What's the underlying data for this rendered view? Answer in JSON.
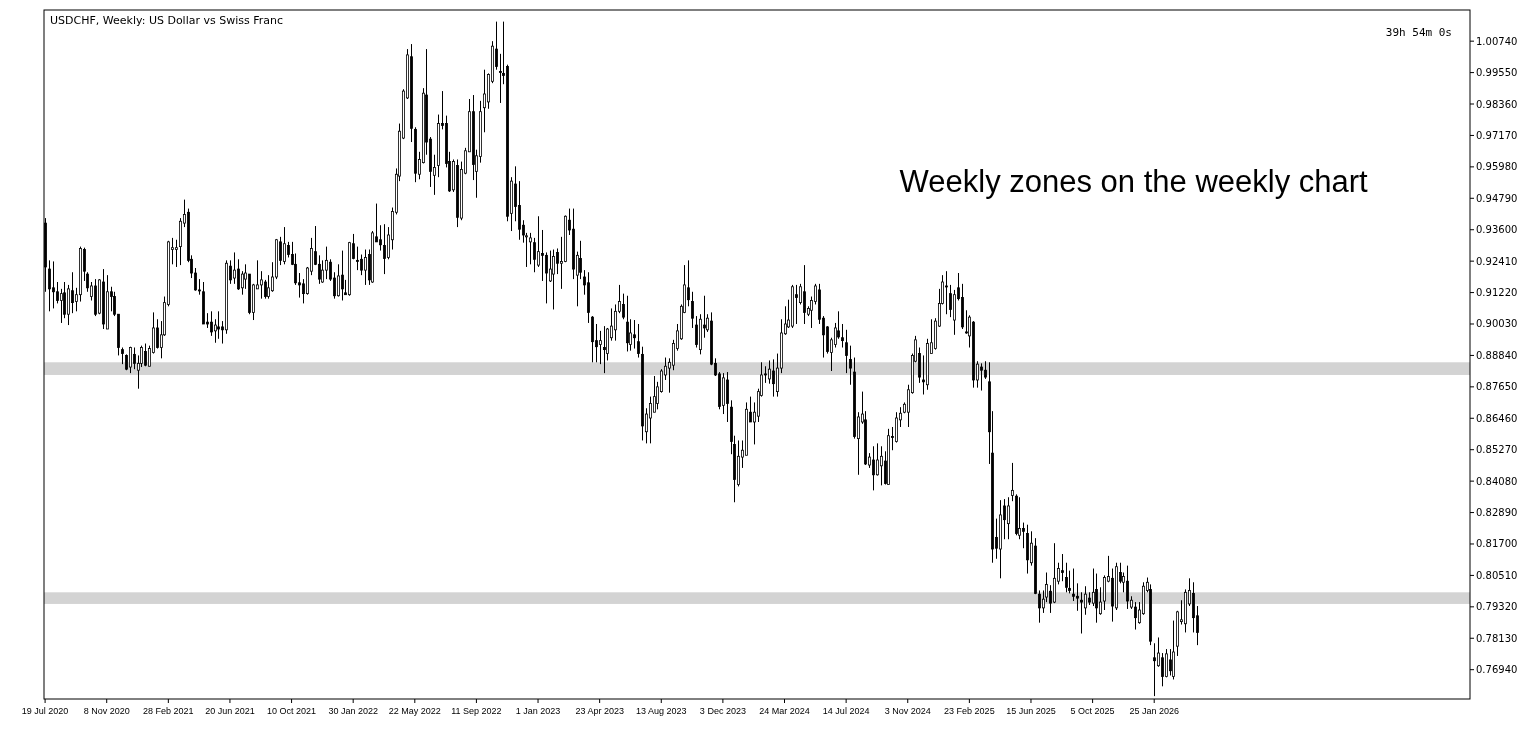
{
  "chart_data": {
    "type": "candlestick",
    "title": "USDCHF, Weekly:  US Dollar vs Swiss Franc",
    "annotations": [
      "Weekly zones on the weekly chart",
      "39h 54m 0s"
    ],
    "xlim": [
      "2020-07-17",
      "2027-08-22"
    ],
    "xticks": [
      {
        "value": "2020-07-19",
        "label": "19 Jul 2020"
      },
      {
        "value": "2020-11-08",
        "label": "8 Nov 2020"
      },
      {
        "value": "2021-02-28",
        "label": "28 Feb 2021"
      },
      {
        "value": "2021-06-20",
        "label": "20 Jun 2021"
      },
      {
        "value": "2021-10-10",
        "label": "10 Oct 2021"
      },
      {
        "value": "2022-01-30",
        "label": "30 Jan 2022"
      },
      {
        "value": "2022-05-22",
        "label": "22 May 2022"
      },
      {
        "value": "2022-09-11",
        "label": "11 Sep 2022"
      },
      {
        "value": "2023-01-01",
        "label": "1 Jan 2023"
      },
      {
        "value": "2023-04-23",
        "label": "23 Apr 2023"
      },
      {
        "value": "2023-08-13",
        "label": "13 Aug 2023"
      },
      {
        "value": "2023-12-03",
        "label": "3 Dec 2023"
      },
      {
        "value": "2024-03-24",
        "label": "24 Mar 2024"
      },
      {
        "value": "2024-07-14",
        "label": "14 Jul 2024"
      },
      {
        "value": "2024-11-03",
        "label": "3 Nov 2024"
      },
      {
        "value": "2025-02-23",
        "label": "23 Feb 2025"
      },
      {
        "value": "2025-06-15",
        "label": "15 Jun 2025"
      },
      {
        "value": "2025-10-05",
        "label": "5 Oct 2025"
      },
      {
        "value": "2026-01-25",
        "label": "25 Jan 2026"
      }
    ],
    "ylim": [
      0.7583,
      1.0192
    ],
    "yticks": [
      {
        "value": 1.0074,
        "label": "1.00740"
      },
      {
        "value": 0.9955,
        "label": "0.99550"
      },
      {
        "value": 0.9836,
        "label": "0.98360"
      },
      {
        "value": 0.9717,
        "label": "0.97170"
      },
      {
        "value": 0.9598,
        "label": "0.95980"
      },
      {
        "value": 0.9479,
        "label": "0.94790"
      },
      {
        "value": 0.936,
        "label": "0.93600"
      },
      {
        "value": 0.9241,
        "label": "0.92410"
      },
      {
        "value": 0.9122,
        "label": "0.91220"
      },
      {
        "value": 0.9003,
        "label": "0.90030"
      },
      {
        "value": 0.8884,
        "label": "0.88840"
      },
      {
        "value": 0.8765,
        "label": "0.87650"
      },
      {
        "value": 0.8646,
        "label": "0.86460"
      },
      {
        "value": 0.8527,
        "label": "0.85270"
      },
      {
        "value": 0.8408,
        "label": "0.84080"
      },
      {
        "value": 0.8289,
        "label": "0.82890"
      },
      {
        "value": 0.817,
        "label": "0.81700"
      },
      {
        "value": 0.8051,
        "label": "0.80510"
      },
      {
        "value": 0.7932,
        "label": "0.79320"
      },
      {
        "value": 0.7813,
        "label": "0.78130"
      },
      {
        "value": 0.7694,
        "label": "0.76940"
      }
    ],
    "bands": [
      {
        "axis": "y",
        "from": 0.881,
        "to": 0.8858,
        "color": "#d3d3d3"
      },
      {
        "axis": "y",
        "from": 0.7943,
        "to": 0.7987,
        "color": "#d3d3d3"
      }
    ],
    "x": [
      "2020-07-19",
      "2020-07-26",
      "2020-08-02",
      "2020-08-09",
      "2020-08-16",
      "2020-08-23",
      "2020-08-30",
      "2020-09-06",
      "2020-09-13",
      "2020-09-20",
      "2020-09-27",
      "2020-10-04",
      "2020-10-11",
      "2020-10-18",
      "2020-10-25",
      "2020-11-01",
      "2020-11-08",
      "2020-11-15",
      "2020-11-22",
      "2020-11-29",
      "2020-12-06",
      "2020-12-13",
      "2020-12-20",
      "2020-12-27",
      "2021-01-03",
      "2021-01-10",
      "2021-01-17",
      "2021-01-24",
      "2021-01-31",
      "2021-02-07",
      "2021-02-14",
      "2021-02-21",
      "2021-02-28",
      "2021-03-07",
      "2021-03-14",
      "2021-03-21",
      "2021-03-28",
      "2021-04-04",
      "2021-04-11",
      "2021-04-18",
      "2021-04-25",
      "2021-05-02",
      "2021-05-09",
      "2021-05-16",
      "2021-05-23",
      "2021-05-30",
      "2021-06-06",
      "2021-06-13",
      "2021-06-20",
      "2021-06-27",
      "2021-07-04",
      "2021-07-11",
      "2021-07-18",
      "2021-07-25",
      "2021-08-01",
      "2021-08-08",
      "2021-08-15",
      "2021-08-22",
      "2021-08-29",
      "2021-09-05",
      "2021-09-12",
      "2021-09-19",
      "2021-09-26",
      "2021-10-03",
      "2021-10-10",
      "2021-10-17",
      "2021-10-24",
      "2021-10-31",
      "2021-11-07",
      "2021-11-14",
      "2021-11-21",
      "2021-11-28",
      "2021-12-05",
      "2021-12-12",
      "2021-12-19",
      "2021-12-26",
      "2022-01-02",
      "2022-01-09",
      "2022-01-16",
      "2022-01-23",
      "2022-01-30",
      "2022-02-06",
      "2022-02-13",
      "2022-02-20",
      "2022-02-27",
      "2022-03-06",
      "2022-03-13",
      "2022-03-20",
      "2022-03-27",
      "2022-04-03",
      "2022-04-10",
      "2022-04-17",
      "2022-04-24",
      "2022-05-01",
      "2022-05-08",
      "2022-05-15",
      "2022-05-22",
      "2022-05-29",
      "2022-06-05",
      "2022-06-12",
      "2022-06-19",
      "2022-06-26",
      "2022-07-03",
      "2022-07-10",
      "2022-07-17",
      "2022-07-24",
      "2022-07-31",
      "2022-08-07",
      "2022-08-14",
      "2022-08-21",
      "2022-08-28",
      "2022-09-04",
      "2022-09-11",
      "2022-09-18",
      "2022-09-25",
      "2022-10-02",
      "2022-10-09",
      "2022-10-16",
      "2022-10-23",
      "2022-10-30",
      "2022-11-06",
      "2022-11-13",
      "2022-11-20",
      "2022-11-27",
      "2022-12-04",
      "2022-12-11",
      "2022-12-18",
      "2022-12-25",
      "2023-01-01",
      "2023-01-08",
      "2023-01-15",
      "2023-01-22",
      "2023-01-29",
      "2023-02-05",
      "2023-02-12",
      "2023-02-19",
      "2023-02-26",
      "2023-03-05",
      "2023-03-12",
      "2023-03-19",
      "2023-03-26",
      "2023-04-02",
      "2023-04-09",
      "2023-04-16",
      "2023-04-23",
      "2023-04-30",
      "2023-05-07",
      "2023-05-14",
      "2023-05-21",
      "2023-05-28",
      "2023-06-04",
      "2023-06-11",
      "2023-06-18",
      "2023-06-25",
      "2023-07-02",
      "2023-07-09",
      "2023-07-16",
      "2023-07-23",
      "2023-07-30",
      "2023-08-06",
      "2023-08-13",
      "2023-08-20",
      "2023-08-27",
      "2023-09-03",
      "2023-09-10",
      "2023-09-17",
      "2023-09-24",
      "2023-10-01",
      "2023-10-08",
      "2023-10-15",
      "2023-10-22",
      "2023-10-29",
      "2023-11-05",
      "2023-11-12",
      "2023-11-19",
      "2023-11-26",
      "2023-12-03",
      "2023-12-10",
      "2023-12-17",
      "2023-12-24",
      "2023-12-31",
      "2024-01-07",
      "2024-01-14",
      "2024-01-21",
      "2024-01-28",
      "2024-02-04",
      "2024-02-11",
      "2024-02-18",
      "2024-02-25",
      "2024-03-03",
      "2024-03-10",
      "2024-03-17",
      "2024-03-24",
      "2024-03-31",
      "2024-04-07",
      "2024-04-14",
      "2024-04-21",
      "2024-04-28",
      "2024-05-05",
      "2024-05-12",
      "2024-05-19",
      "2024-05-26",
      "2024-06-02",
      "2024-06-09",
      "2024-06-16",
      "2024-06-23",
      "2024-06-30",
      "2024-07-07",
      "2024-07-14",
      "2024-07-21",
      "2024-07-28",
      "2024-08-04",
      "2024-08-11",
      "2024-08-18",
      "2024-08-25",
      "2024-09-01",
      "2024-09-08",
      "2024-09-15",
      "2024-09-22",
      "2024-09-29",
      "2024-10-06",
      "2024-10-13",
      "2024-10-20",
      "2024-10-27",
      "2024-11-03",
      "2024-11-10",
      "2024-11-17",
      "2024-11-24",
      "2024-12-01",
      "2024-12-08",
      "2024-12-15",
      "2024-12-22",
      "2024-12-29",
      "2025-01-05",
      "2025-01-12",
      "2025-01-19",
      "2025-01-26",
      "2025-02-02",
      "2025-02-09",
      "2025-02-16",
      "2025-02-23",
      "2025-03-02",
      "2025-03-09",
      "2025-03-16",
      "2025-03-23",
      "2025-03-30",
      "2025-04-06",
      "2025-04-13",
      "2025-04-20",
      "2025-04-27",
      "2025-05-04",
      "2025-05-11",
      "2025-05-18",
      "2025-05-25",
      "2025-06-01",
      "2025-06-08",
      "2025-06-15",
      "2025-06-22",
      "2025-06-29",
      "2025-07-06",
      "2025-07-13",
      "2025-07-20",
      "2025-07-27",
      "2025-08-03",
      "2025-08-10",
      "2025-08-17",
      "2025-08-24",
      "2025-08-31",
      "2025-09-07",
      "2025-09-14",
      "2025-09-21",
      "2025-09-28",
      "2025-10-05",
      "2025-10-12",
      "2025-10-19",
      "2025-10-26",
      "2025-11-02",
      "2025-11-09",
      "2025-11-16",
      "2025-11-23",
      "2025-11-30",
      "2025-12-07",
      "2025-12-14",
      "2025-12-21",
      "2025-12-28",
      "2026-01-04",
      "2026-01-11",
      "2026-01-18",
      "2026-01-25",
      "2026-02-01",
      "2026-02-08",
      "2026-02-15",
      "2026-02-22",
      "2026-03-01",
      "2026-03-08",
      "2026-03-15",
      "2026-03-22",
      "2026-03-29",
      "2026-04-05",
      "2026-04-12"
    ],
    "ohlc": [
      [
        0.9385,
        0.9404,
        0.9125,
        0.9219
      ],
      [
        0.9211,
        0.9244,
        0.9051,
        0.9136
      ],
      [
        0.914,
        0.924,
        0.9062,
        0.9125
      ],
      [
        0.9125,
        0.9162,
        0.9081,
        0.9092
      ],
      [
        0.9092,
        0.9136,
        0.9007,
        0.9118
      ],
      [
        0.9121,
        0.9162,
        0.9025,
        0.904
      ],
      [
        0.904,
        0.9151,
        0.8999,
        0.9136
      ],
      [
        0.9129,
        0.9199,
        0.9044,
        0.9084
      ],
      [
        0.9088,
        0.914,
        0.9051,
        0.9114
      ],
      [
        0.9114,
        0.9296,
        0.9088,
        0.9289
      ],
      [
        0.9285,
        0.9292,
        0.9166,
        0.9203
      ],
      [
        0.9192,
        0.9199,
        0.9125,
        0.914
      ],
      [
        0.9107,
        0.9162,
        0.9092,
        0.9147
      ],
      [
        0.9147,
        0.9173,
        0.9033,
        0.904
      ],
      [
        0.9044,
        0.9173,
        0.904,
        0.917
      ],
      [
        0.9162,
        0.9211,
        0.8984,
        0.9003
      ],
      [
        0.8984,
        0.9188,
        0.8984,
        0.9125
      ],
      [
        0.9125,
        0.9144,
        0.9051,
        0.9107
      ],
      [
        0.9107,
        0.9125,
        0.9033,
        0.904
      ],
      [
        0.904,
        0.904,
        0.8884,
        0.8914
      ],
      [
        0.8906,
        0.8914,
        0.8851,
        0.8891
      ],
      [
        0.8884,
        0.8888,
        0.8828,
        0.8832
      ],
      [
        0.884,
        0.8917,
        0.8817,
        0.8914
      ],
      [
        0.8888,
        0.8914,
        0.8832,
        0.8854
      ],
      [
        0.8828,
        0.8884,
        0.8758,
        0.8854
      ],
      [
        0.8854,
        0.8921,
        0.884,
        0.8914
      ],
      [
        0.8899,
        0.8929,
        0.8843,
        0.8847
      ],
      [
        0.8843,
        0.8921,
        0.8843,
        0.891
      ],
      [
        0.8895,
        0.9047,
        0.8891,
        0.8988
      ],
      [
        0.8988,
        0.9021,
        0.891,
        0.8914
      ],
      [
        0.8914,
        0.9014,
        0.8873,
        0.8962
      ],
      [
        0.8962,
        0.9107,
        0.8958,
        0.9084
      ],
      [
        0.9077,
        0.9318,
        0.907,
        0.9314
      ],
      [
        0.9285,
        0.9329,
        0.9229,
        0.9292
      ],
      [
        0.9285,
        0.9322,
        0.9219,
        0.9292
      ],
      [
        0.9296,
        0.9404,
        0.9226,
        0.9392
      ],
      [
        0.9385,
        0.9474,
        0.937,
        0.9418
      ],
      [
        0.9426,
        0.944,
        0.9237,
        0.9244
      ],
      [
        0.9248,
        0.9263,
        0.9177,
        0.9196
      ],
      [
        0.9196,
        0.9215,
        0.9129,
        0.9132
      ],
      [
        0.9132,
        0.9173,
        0.9114,
        0.9129
      ],
      [
        0.9125,
        0.9162,
        0.9003,
        0.9003
      ],
      [
        0.901,
        0.9044,
        0.8988,
        0.9003
      ],
      [
        0.901,
        0.9051,
        0.8958,
        0.8973
      ],
      [
        0.8977,
        0.9021,
        0.8932,
        0.8999
      ],
      [
        0.8992,
        0.9051,
        0.8947,
        0.8984
      ],
      [
        0.8992,
        0.9014,
        0.8929,
        0.8981
      ],
      [
        0.8981,
        0.9244,
        0.8966,
        0.9233
      ],
      [
        0.9222,
        0.9244,
        0.9155,
        0.917
      ],
      [
        0.9177,
        0.9274,
        0.9155,
        0.9207
      ],
      [
        0.9211,
        0.9248,
        0.9132,
        0.9136
      ],
      [
        0.914,
        0.9203,
        0.9114,
        0.9192
      ],
      [
        0.9173,
        0.9229,
        0.9136,
        0.9196
      ],
      [
        0.9192,
        0.9192,
        0.904,
        0.9047
      ],
      [
        0.9047,
        0.9155,
        0.9018,
        0.9151
      ],
      [
        0.9136,
        0.9244,
        0.9136,
        0.9151
      ],
      [
        0.9151,
        0.9203,
        0.9099,
        0.917
      ],
      [
        0.9162,
        0.917,
        0.9099,
        0.9107
      ],
      [
        0.9107,
        0.9188,
        0.9099,
        0.914
      ],
      [
        0.9129,
        0.9237,
        0.9125,
        0.9181
      ],
      [
        0.9181,
        0.9325,
        0.9173,
        0.9322
      ],
      [
        0.9314,
        0.9333,
        0.9226,
        0.9244
      ],
      [
        0.924,
        0.937,
        0.9229,
        0.9307
      ],
      [
        0.93,
        0.9314,
        0.9255,
        0.9266
      ],
      [
        0.9266,
        0.9314,
        0.9226,
        0.9229
      ],
      [
        0.9229,
        0.927,
        0.9151,
        0.9159
      ],
      [
        0.9159,
        0.9196,
        0.9103,
        0.9151
      ],
      [
        0.9155,
        0.9173,
        0.9081,
        0.9118
      ],
      [
        0.9118,
        0.9219,
        0.9114,
        0.9215
      ],
      [
        0.9203,
        0.9329,
        0.9188,
        0.9289
      ],
      [
        0.9277,
        0.9374,
        0.9226,
        0.9229
      ],
      [
        0.9229,
        0.9263,
        0.9155,
        0.9173
      ],
      [
        0.9162,
        0.9244,
        0.9159,
        0.9207
      ],
      [
        0.9207,
        0.9296,
        0.9173,
        0.9244
      ],
      [
        0.9237,
        0.9248,
        0.9166,
        0.9173
      ],
      [
        0.9177,
        0.9199,
        0.9099,
        0.911
      ],
      [
        0.911,
        0.9229,
        0.9107,
        0.9185
      ],
      [
        0.9188,
        0.9281,
        0.9092,
        0.9136
      ],
      [
        0.9121,
        0.917,
        0.9114,
        0.9114
      ],
      [
        0.9114,
        0.9314,
        0.911,
        0.9311
      ],
      [
        0.9307,
        0.9344,
        0.9248,
        0.9251
      ],
      [
        0.9244,
        0.9296,
        0.9207,
        0.924
      ],
      [
        0.9248,
        0.9266,
        0.9188,
        0.9207
      ],
      [
        0.9207,
        0.9285,
        0.9151,
        0.9255
      ],
      [
        0.9266,
        0.9285,
        0.9151,
        0.917
      ],
      [
        0.9162,
        0.9355,
        0.9159,
        0.9348
      ],
      [
        0.9333,
        0.9459,
        0.9314,
        0.9314
      ],
      [
        0.9322,
        0.9377,
        0.9281,
        0.9303
      ],
      [
        0.93,
        0.9381,
        0.9192,
        0.9251
      ],
      [
        0.9255,
        0.937,
        0.9248,
        0.934
      ],
      [
        0.9322,
        0.9444,
        0.9285,
        0.9429
      ],
      [
        0.9426,
        0.9592,
        0.9418,
        0.957
      ],
      [
        0.9563,
        0.9762,
        0.9544,
        0.9733
      ],
      [
        0.9707,
        0.9892,
        0.9703,
        0.9885
      ],
      [
        0.9859,
        1.0044,
        0.9855,
        1.0022
      ],
      [
        1.0015,
        1.0063,
        0.9692,
        0.9744
      ],
      [
        0.974,
        0.9748,
        0.954,
        0.9574
      ],
      [
        0.957,
        0.9655,
        0.9551,
        0.9626
      ],
      [
        0.9614,
        0.9896,
        0.9611,
        0.9877
      ],
      [
        0.987,
        1.0044,
        0.9644,
        0.9692
      ],
      [
        0.9703,
        0.9711,
        0.9522,
        0.9581
      ],
      [
        0.9566,
        0.9644,
        0.9492,
        0.9596
      ],
      [
        0.9603,
        0.9796,
        0.9559,
        0.9762
      ],
      [
        0.9762,
        0.9885,
        0.974,
        0.9755
      ],
      [
        0.9762,
        0.9792,
        0.9596,
        0.9611
      ],
      [
        0.9618,
        0.9655,
        0.9503,
        0.9507
      ],
      [
        0.9511,
        0.9626,
        0.9503,
        0.9618
      ],
      [
        0.9603,
        0.9626,
        0.937,
        0.9407
      ],
      [
        0.9404,
        0.9618,
        0.9396,
        0.9588
      ],
      [
        0.9574,
        0.967,
        0.957,
        0.9659
      ],
      [
        0.9655,
        0.9855,
        0.9655,
        0.9807
      ],
      [
        0.9807,
        0.987,
        0.9548,
        0.9607
      ],
      [
        0.9581,
        0.9663,
        0.9481,
        0.964
      ],
      [
        0.9637,
        0.9848,
        0.9614,
        0.9807
      ],
      [
        0.9822,
        0.9966,
        0.9729,
        0.9874
      ],
      [
        0.9844,
        0.9952,
        0.9818,
        0.9948
      ],
      [
        0.9922,
        1.0074,
        0.9915,
        1.0055
      ],
      [
        1.0044,
        1.0148,
        0.9966,
        0.9978
      ],
      [
        0.9959,
        1.0026,
        0.984,
        0.9955
      ],
      [
        0.9952,
        1.0148,
        0.9911,
        0.9944
      ],
      [
        0.9978,
        0.9985,
        0.9392,
        0.9411
      ],
      [
        0.9422,
        0.9559,
        0.9355,
        0.9544
      ],
      [
        0.9533,
        0.96,
        0.9392,
        0.9448
      ],
      [
        0.9452,
        0.9544,
        0.9322,
        0.9362
      ],
      [
        0.9377,
        0.9396,
        0.9311,
        0.934
      ],
      [
        0.9333,
        0.9348,
        0.9219,
        0.9337
      ],
      [
        0.9314,
        0.9348,
        0.9229,
        0.9329
      ],
      [
        0.9311,
        0.9329,
        0.9199,
        0.9248
      ],
      [
        0.9226,
        0.9411,
        0.9219,
        0.9277
      ],
      [
        0.927,
        0.9359,
        0.9166,
        0.9263
      ],
      [
        0.9263,
        0.9274,
        0.9081,
        0.9196
      ],
      [
        0.9166,
        0.9281,
        0.9162,
        0.9211
      ],
      [
        0.9192,
        0.9285,
        0.9058,
        0.9259
      ],
      [
        0.9274,
        0.9289,
        0.9192,
        0.9233
      ],
      [
        0.9233,
        0.9333,
        0.9136,
        0.924
      ],
      [
        0.924,
        0.9414,
        0.9237,
        0.9411
      ],
      [
        0.9396,
        0.944,
        0.934,
        0.9359
      ],
      [
        0.9362,
        0.944,
        0.9173,
        0.9211
      ],
      [
        0.9188,
        0.9277,
        0.907,
        0.9263
      ],
      [
        0.9251,
        0.9318,
        0.9173,
        0.9199
      ],
      [
        0.9181,
        0.9207,
        0.9114,
        0.9151
      ],
      [
        0.9159,
        0.9199,
        0.9007,
        0.9047
      ],
      [
        0.9029,
        0.9033,
        0.8858,
        0.8936
      ],
      [
        0.894,
        0.9003,
        0.8858,
        0.8917
      ],
      [
        0.8925,
        0.8977,
        0.8851,
        0.894
      ],
      [
        0.8914,
        0.8995,
        0.8817,
        0.8906
      ],
      [
        0.8891,
        0.8988,
        0.8865,
        0.8984
      ],
      [
        0.8951,
        0.9062,
        0.894,
        0.8995
      ],
      [
        0.8981,
        0.9077,
        0.894,
        0.9051
      ],
      [
        0.9051,
        0.9151,
        0.9044,
        0.9088
      ],
      [
        0.9077,
        0.9118,
        0.9021,
        0.9029
      ],
      [
        0.901,
        0.911,
        0.8899,
        0.8932
      ],
      [
        0.8925,
        0.9021,
        0.8902,
        0.8969
      ],
      [
        0.8962,
        0.9018,
        0.891,
        0.8951
      ],
      [
        0.8936,
        0.9003,
        0.8876,
        0.8891
      ],
      [
        0.8888,
        0.8917,
        0.8562,
        0.8617
      ],
      [
        0.8595,
        0.8684,
        0.8551,
        0.8662
      ],
      [
        0.8647,
        0.8728,
        0.8551,
        0.8702
      ],
      [
        0.8669,
        0.8806,
        0.8669,
        0.8728
      ],
      [
        0.8702,
        0.8784,
        0.868,
        0.8765
      ],
      [
        0.8747,
        0.8832,
        0.8743,
        0.8825
      ],
      [
        0.881,
        0.8876,
        0.8791,
        0.8843
      ],
      [
        0.8836,
        0.8873,
        0.8743,
        0.8858
      ],
      [
        0.8847,
        0.8943,
        0.8828,
        0.8929
      ],
      [
        0.891,
        0.9003,
        0.8902,
        0.8977
      ],
      [
        0.8947,
        0.9077,
        0.8943,
        0.907
      ],
      [
        0.9047,
        0.9226,
        0.9044,
        0.9151
      ],
      [
        0.914,
        0.9244,
        0.907,
        0.9095
      ],
      [
        0.9088,
        0.9125,
        0.8988,
        0.9025
      ],
      [
        0.8999,
        0.9033,
        0.8914,
        0.8925
      ],
      [
        0.8906,
        0.904,
        0.8888,
        0.9021
      ],
      [
        0.8999,
        0.911,
        0.8951,
        0.8988
      ],
      [
        0.8981,
        0.904,
        0.8973,
        0.9025
      ],
      [
        0.9014,
        0.9047,
        0.8847,
        0.8851
      ],
      [
        0.8854,
        0.8873,
        0.8806,
        0.881
      ],
      [
        0.8814,
        0.8821,
        0.868,
        0.8691
      ],
      [
        0.8695,
        0.8817,
        0.8662,
        0.8799
      ],
      [
        0.8791,
        0.8821,
        0.8632,
        0.8702
      ],
      [
        0.8688,
        0.8714,
        0.851,
        0.8558
      ],
      [
        0.8547,
        0.858,
        0.8328,
        0.8414
      ],
      [
        0.8395,
        0.8562,
        0.8388,
        0.8502
      ],
      [
        0.8499,
        0.8562,
        0.8458,
        0.8525
      ],
      [
        0.8506,
        0.8706,
        0.8506,
        0.868
      ],
      [
        0.8669,
        0.8728,
        0.8632,
        0.8632
      ],
      [
        0.8632,
        0.8706,
        0.8547,
        0.8669
      ],
      [
        0.8654,
        0.8758,
        0.8632,
        0.8747
      ],
      [
        0.8732,
        0.8858,
        0.8728,
        0.881
      ],
      [
        0.8814,
        0.8843,
        0.878,
        0.881
      ],
      [
        0.8795,
        0.8865,
        0.8777,
        0.8832
      ],
      [
        0.8825,
        0.8869,
        0.8728,
        0.8777
      ],
      [
        0.8747,
        0.8891,
        0.8728,
        0.8836
      ],
      [
        0.8836,
        0.9021,
        0.8817,
        0.8969
      ],
      [
        0.8966,
        0.907,
        0.8962,
        0.9003
      ],
      [
        0.8992,
        0.9095,
        0.8988,
        0.9018
      ],
      [
        0.8995,
        0.9151,
        0.8988,
        0.9144
      ],
      [
        0.9114,
        0.9151,
        0.9003,
        0.9103
      ],
      [
        0.9084,
        0.9155,
        0.9077,
        0.9144
      ],
      [
        0.9125,
        0.9226,
        0.9003,
        0.9047
      ],
      [
        0.904,
        0.907,
        0.9033,
        0.9062
      ],
      [
        0.9055,
        0.9107,
        0.8988,
        0.9092
      ],
      [
        0.9088,
        0.9155,
        0.9077,
        0.9147
      ],
      [
        0.9132,
        0.9155,
        0.9003,
        0.9021
      ],
      [
        0.9025,
        0.9033,
        0.8876,
        0.8962
      ],
      [
        0.8992,
        0.8995,
        0.8891,
        0.8899
      ],
      [
        0.8895,
        0.8951,
        0.8825,
        0.8943
      ],
      [
        0.8925,
        0.9007,
        0.8914,
        0.8988
      ],
      [
        0.8977,
        0.9051,
        0.8947,
        0.8954
      ],
      [
        0.8951,
        0.9003,
        0.8914,
        0.894
      ],
      [
        0.8932,
        0.8981,
        0.8817,
        0.8884
      ],
      [
        0.8869,
        0.8921,
        0.8773,
        0.8836
      ],
      [
        0.8821,
        0.8876,
        0.8569,
        0.8577
      ],
      [
        0.8569,
        0.8669,
        0.8432,
        0.8651
      ],
      [
        0.8632,
        0.8747,
        0.8625,
        0.8662
      ],
      [
        0.864,
        0.8673,
        0.8469,
        0.8473
      ],
      [
        0.8469,
        0.8514,
        0.8458,
        0.8499
      ],
      [
        0.8488,
        0.854,
        0.8373,
        0.8432
      ],
      [
        0.8432,
        0.8551,
        0.8429,
        0.8488
      ],
      [
        0.8466,
        0.854,
        0.8392,
        0.8502
      ],
      [
        0.8484,
        0.8521,
        0.8395,
        0.8399
      ],
      [
        0.8395,
        0.8606,
        0.8395,
        0.858
      ],
      [
        0.8577,
        0.8613,
        0.8525,
        0.8573
      ],
      [
        0.8558,
        0.8669,
        0.8554,
        0.8647
      ],
      [
        0.864,
        0.8688,
        0.8613,
        0.8665
      ],
      [
        0.8669,
        0.8706,
        0.8665,
        0.8699
      ],
      [
        0.8669,
        0.8773,
        0.8613,
        0.8754
      ],
      [
        0.8743,
        0.8891,
        0.8739,
        0.8884
      ],
      [
        0.8862,
        0.8958,
        0.8858,
        0.8943
      ],
      [
        0.8891,
        0.8914,
        0.878,
        0.8802
      ],
      [
        0.8791,
        0.8884,
        0.8736,
        0.8784
      ],
      [
        0.8773,
        0.8947,
        0.8754,
        0.8929
      ],
      [
        0.8891,
        0.9021,
        0.8891,
        0.8932
      ],
      [
        0.891,
        0.9025,
        0.8906,
        0.9014
      ],
      [
        0.8995,
        0.9136,
        0.8992,
        0.9081
      ],
      [
        0.9081,
        0.9188,
        0.9077,
        0.9162
      ],
      [
        0.9147,
        0.9203,
        0.904,
        0.9144
      ],
      [
        0.9118,
        0.9151,
        0.9029,
        0.9058
      ],
      [
        0.9018,
        0.9132,
        0.8962,
        0.9114
      ],
      [
        0.914,
        0.9196,
        0.9092,
        0.9099
      ],
      [
        0.9103,
        0.9155,
        0.8984,
        0.8992
      ],
      [
        0.8973,
        0.9055,
        0.8966,
        0.8969
      ],
      [
        0.8958,
        0.9036,
        0.8914,
        0.9029
      ],
      [
        0.901,
        0.9014,
        0.8762,
        0.8791
      ],
      [
        0.8791,
        0.8862,
        0.8762,
        0.8851
      ],
      [
        0.884,
        0.8854,
        0.8751,
        0.8828
      ],
      [
        0.8828,
        0.8862,
        0.8795,
        0.8802
      ],
      [
        0.8784,
        0.8858,
        0.8473,
        0.8595
      ],
      [
        0.8514,
        0.8673,
        0.8099,
        0.8151
      ],
      [
        0.8195,
        0.8266,
        0.8114,
        0.8154
      ],
      [
        0.8151,
        0.8336,
        0.804,
        0.828
      ],
      [
        0.8314,
        0.834,
        0.8188,
        0.8262
      ],
      [
        0.8247,
        0.8347,
        0.8188,
        0.8314
      ],
      [
        0.8354,
        0.8477,
        0.8332,
        0.8373
      ],
      [
        0.8351,
        0.8358,
        0.8203,
        0.821
      ],
      [
        0.8203,
        0.8347,
        0.8188,
        0.8229
      ],
      [
        0.8229,
        0.8251,
        0.8154,
        0.8218
      ],
      [
        0.821,
        0.8243,
        0.8058,
        0.811
      ],
      [
        0.8099,
        0.8218,
        0.8088,
        0.8173
      ],
      [
        0.8162,
        0.8192,
        0.798,
        0.7983
      ],
      [
        0.798,
        0.7994,
        0.7872,
        0.7928
      ],
      [
        0.7928,
        0.7994,
        0.7909,
        0.7961
      ],
      [
        0.7969,
        0.8062,
        0.795,
        0.8017
      ],
      [
        0.7991,
        0.8014,
        0.7909,
        0.7946
      ],
      [
        0.795,
        0.8173,
        0.7946,
        0.804
      ],
      [
        0.8029,
        0.8099,
        0.8017,
        0.8077
      ],
      [
        0.8069,
        0.8132,
        0.8029,
        0.8062
      ],
      [
        0.8043,
        0.8099,
        0.7987,
        0.8006
      ],
      [
        0.8002,
        0.8069,
        0.7983,
        0.7994
      ],
      [
        0.798,
        0.8077,
        0.7954,
        0.7972
      ],
      [
        0.7972,
        0.8021,
        0.7917,
        0.7965
      ],
      [
        0.7957,
        0.7987,
        0.7831,
        0.795
      ],
      [
        0.7928,
        0.801,
        0.7902,
        0.798
      ],
      [
        0.7965,
        0.7987,
        0.7939,
        0.795
      ],
      [
        0.7946,
        0.8077,
        0.7935,
        0.7987
      ],
      [
        0.7998,
        0.8058,
        0.7872,
        0.7928
      ],
      [
        0.7906,
        0.8006,
        0.7902,
        0.795
      ],
      [
        0.7954,
        0.8051,
        0.792,
        0.8043
      ],
      [
        0.8029,
        0.8125,
        0.8025,
        0.8047
      ],
      [
        0.804,
        0.8077,
        0.7876,
        0.7935
      ],
      [
        0.7928,
        0.8099,
        0.792,
        0.8084
      ],
      [
        0.8062,
        0.8099,
        0.8021,
        0.8029
      ],
      [
        0.8025,
        0.8062,
        0.7987,
        0.8047
      ],
      [
        0.8029,
        0.8088,
        0.7924,
        0.7954
      ],
      [
        0.7931,
        0.7972,
        0.7924,
        0.7957
      ],
      [
        0.7931,
        0.795,
        0.7846,
        0.7891
      ],
      [
        0.7872,
        0.795,
        0.7868,
        0.792
      ],
      [
        0.7906,
        0.8025,
        0.7902,
        0.801
      ],
      [
        0.7994,
        0.8043,
        0.7987,
        0.8025
      ],
      [
        0.7998,
        0.8017,
        0.7787,
        0.7802
      ],
      [
        0.7739,
        0.7794,
        0.7594,
        0.7728
      ],
      [
        0.7709,
        0.7816,
        0.7705,
        0.7757
      ],
      [
        0.7739,
        0.7757,
        0.7631,
        0.7668
      ],
      [
        0.7668,
        0.7772,
        0.7665,
        0.7754
      ],
      [
        0.7731,
        0.7772,
        0.7672,
        0.769
      ],
      [
        0.7668,
        0.788,
        0.7657,
        0.7761
      ],
      [
        0.7783,
        0.7917,
        0.7746,
        0.7913
      ],
      [
        0.7876,
        0.7957,
        0.7865,
        0.7883
      ],
      [
        0.7868,
        0.7998,
        0.7835,
        0.7987
      ],
      [
        0.7943,
        0.804,
        0.7935,
        0.7994
      ],
      [
        0.7983,
        0.8025,
        0.7835,
        0.7891
      ],
      [
        0.7898,
        0.7935,
        0.7787,
        0.7835
      ]
    ]
  }
}
